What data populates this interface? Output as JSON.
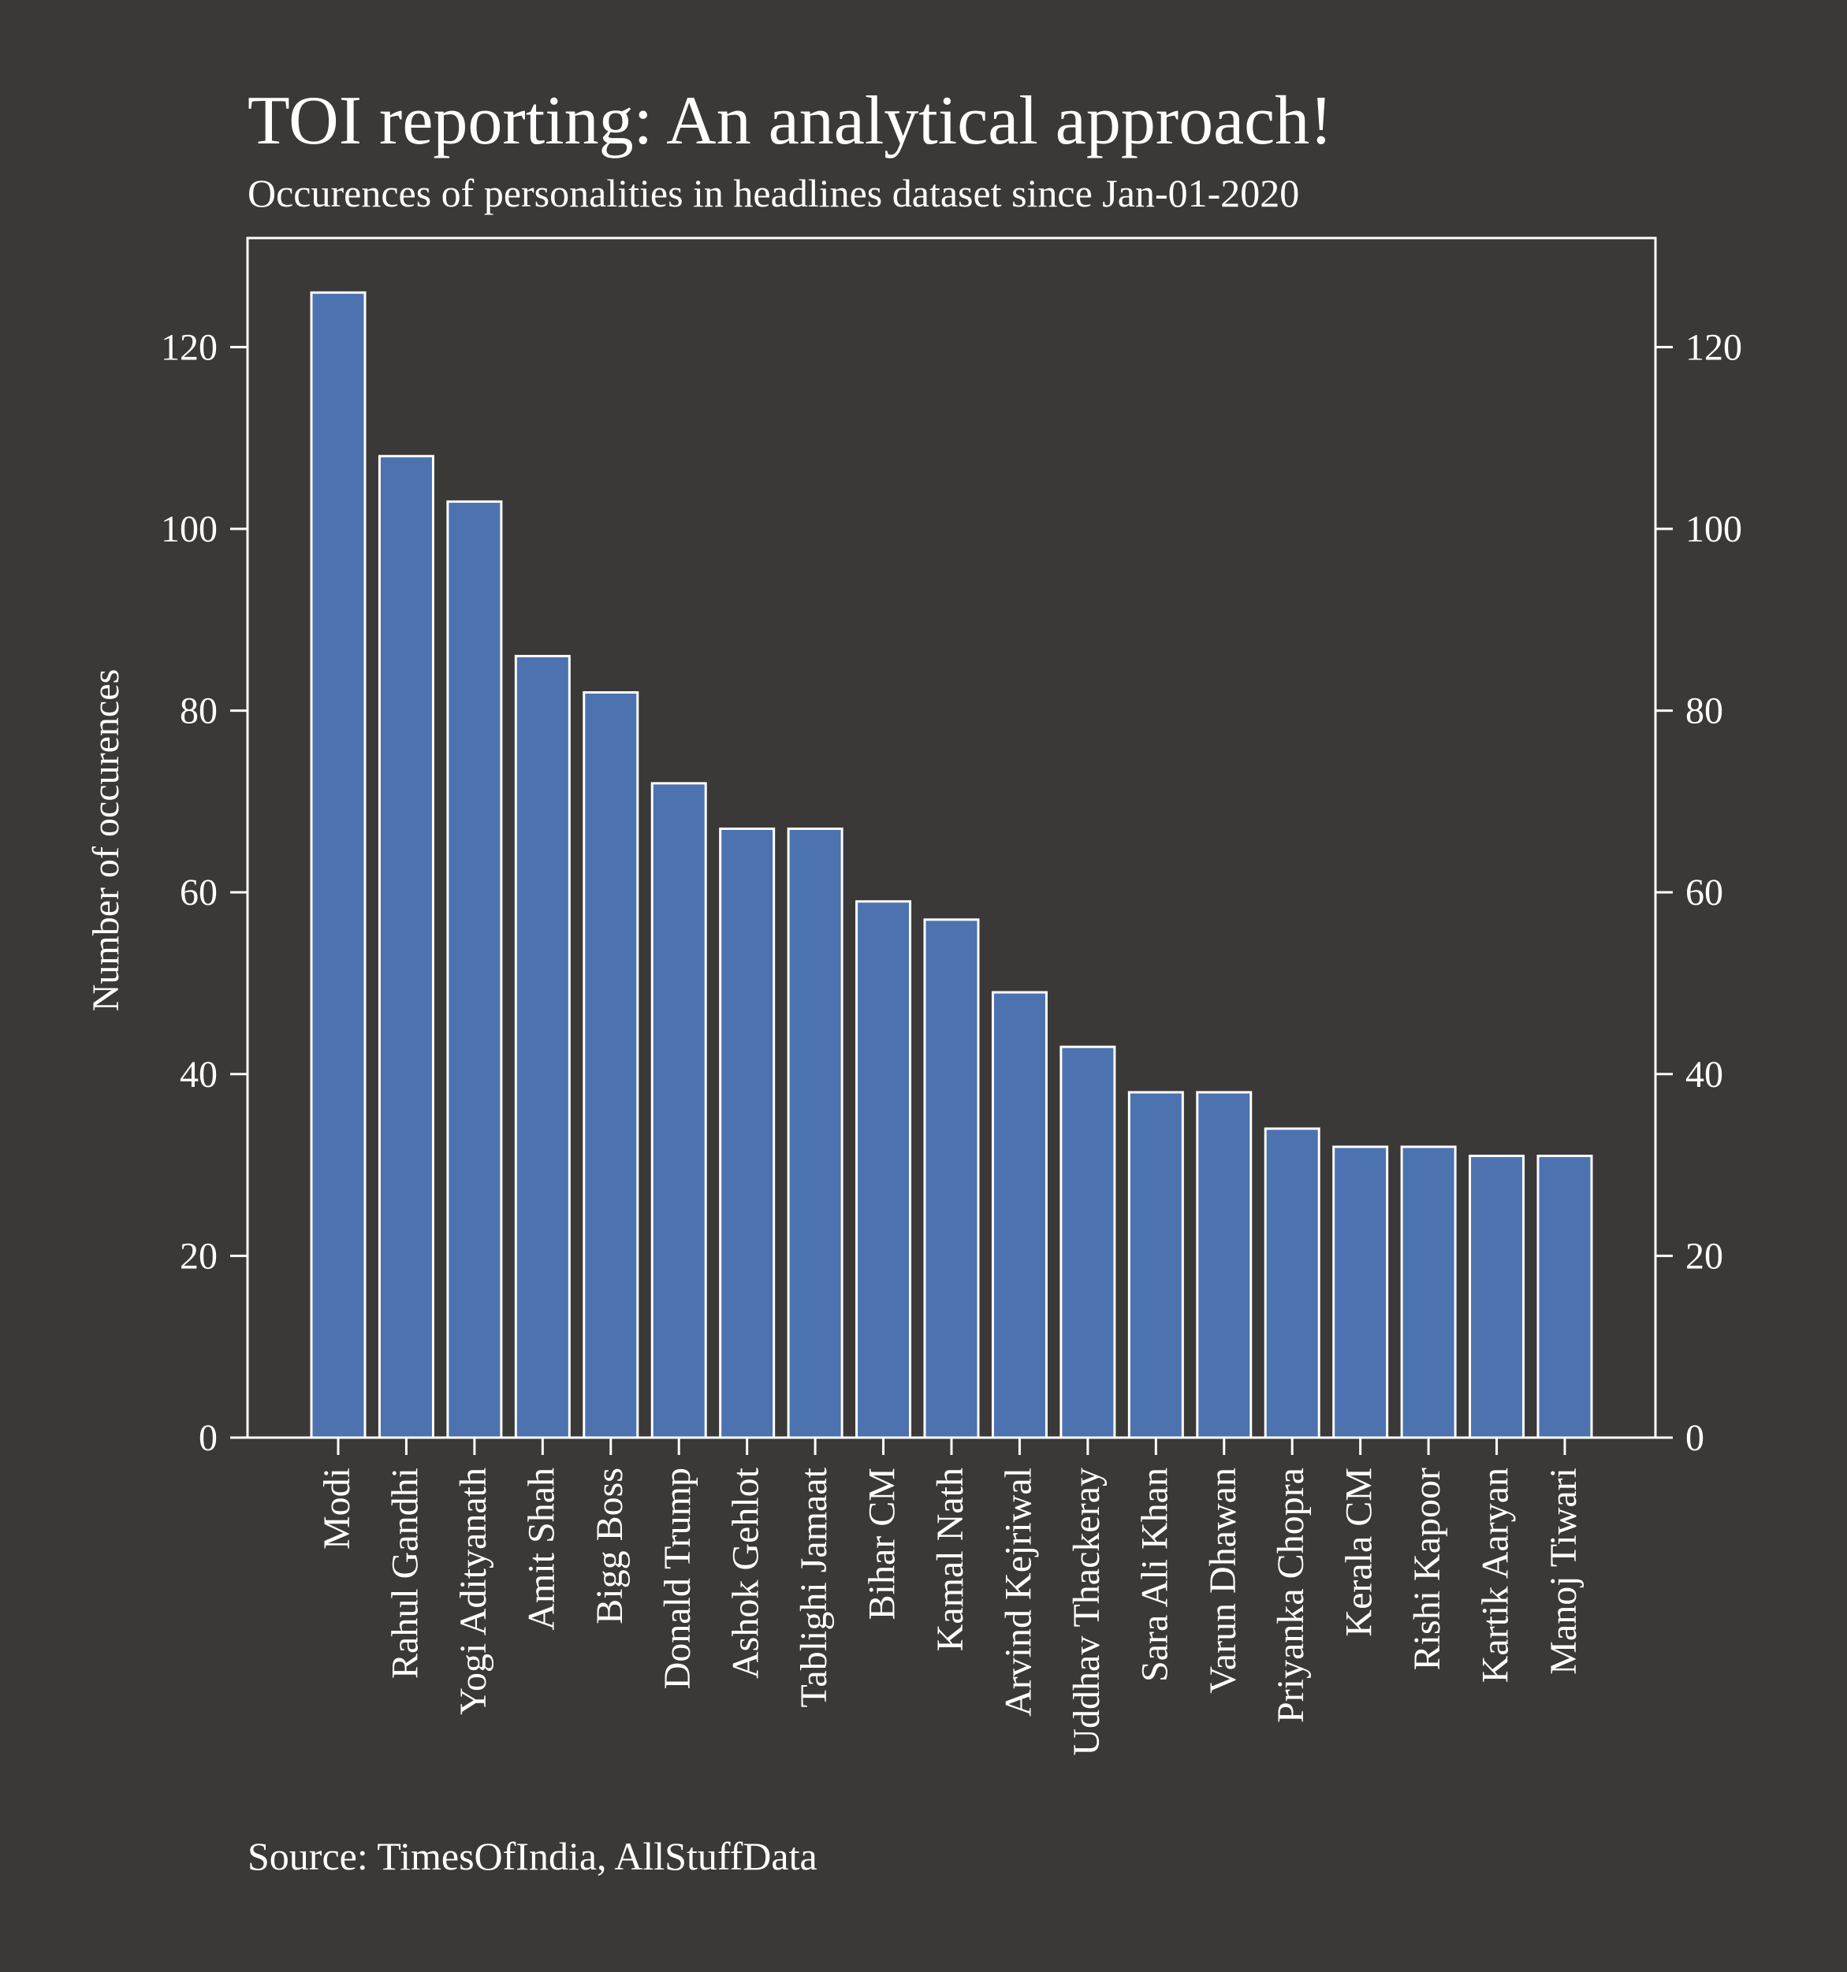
{
  "background_color": "#3a3938",
  "chart_data": {
    "type": "bar",
    "title": "TOI reporting: An analytical approach!",
    "subtitle": "Occurences of personalities in headlines dataset since Jan-01-2020",
    "ylabel": "Number of occurences",
    "xlabel": "",
    "source": "Source: TimesOfIndia, AllStuffData",
    "ylim": [
      0,
      132
    ],
    "yticks": [
      0,
      20,
      40,
      60,
      80,
      100,
      120
    ],
    "grid": false,
    "bar_color": "#4c72b0",
    "bar_edge_color": "#ffffff",
    "categories": [
      "Modi",
      "Rahul Gandhi",
      "Yogi Adityanath",
      "Amit Shah",
      "Bigg Boss",
      "Donald Trump",
      "Ashok Gehlot",
      "Tablighi Jamaat",
      "Bihar CM",
      "Kamal Nath",
      "Arvind Kejriwal",
      "Uddhav Thackeray",
      "Sara Ali Khan",
      "Varun Dhawan",
      "Priyanka Chopra",
      "Kerala CM",
      "Rishi Kapoor",
      "Kartik Aaryan",
      "Manoj Tiwari"
    ],
    "values": [
      126,
      108,
      103,
      86,
      82,
      72,
      67,
      67,
      59,
      57,
      49,
      43,
      38,
      38,
      34,
      32,
      32,
      31,
      31
    ]
  }
}
